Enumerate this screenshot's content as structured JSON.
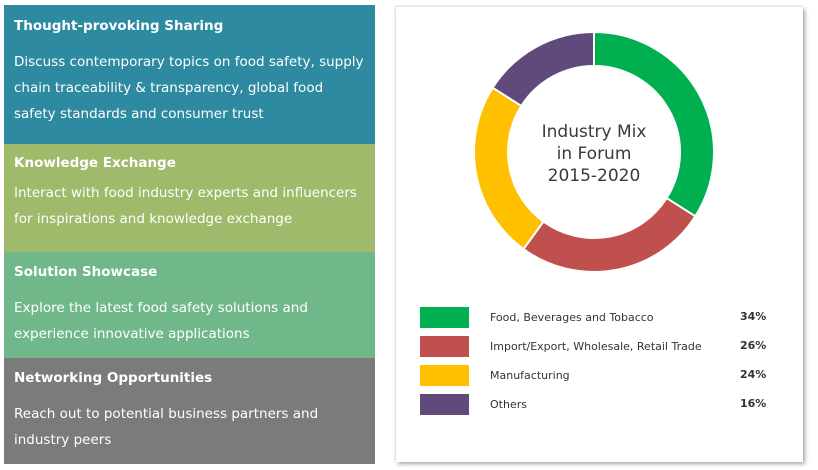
{
  "panels": [
    {
      "title": "Thought-provoking Sharing",
      "body": "Discuss contemporary topics on food safety, supply chain traceability & transparency, global food safety standards and consumer trust",
      "color": "#2e8aa0"
    },
    {
      "title": "Knowledge Exchange",
      "body": "Interact with food industry experts and influencers for inspirations and knowledge exchange",
      "color": "#9fba6a"
    },
    {
      "title": "Solution Showcase",
      "body": "Explore the latest food safety solutions and experience innovative applications",
      "color": "#70b88a"
    },
    {
      "title": "Networking Opportunities",
      "body": "Reach out to potential business partners and industry peers",
      "color": "#7b7b7b"
    }
  ],
  "chart_data": {
    "type": "pie",
    "title": "Industry Mix in Forum 2015-2020",
    "title_lines": [
      "Industry Mix",
      "in Forum",
      "2015-2020"
    ],
    "categories": [
      "Food, Beverages and Tobacco",
      "Import/Export, Wholesale, Retail Trade",
      "Manufacturing",
      "Others"
    ],
    "values": [
      34,
      26,
      24,
      16
    ],
    "labels": [
      "34%",
      "26%",
      "24%",
      "16%"
    ],
    "colors": [
      "#00b050",
      "#c0504d",
      "#ffc000",
      "#604a7b"
    ],
    "legend_position": "bottom"
  }
}
